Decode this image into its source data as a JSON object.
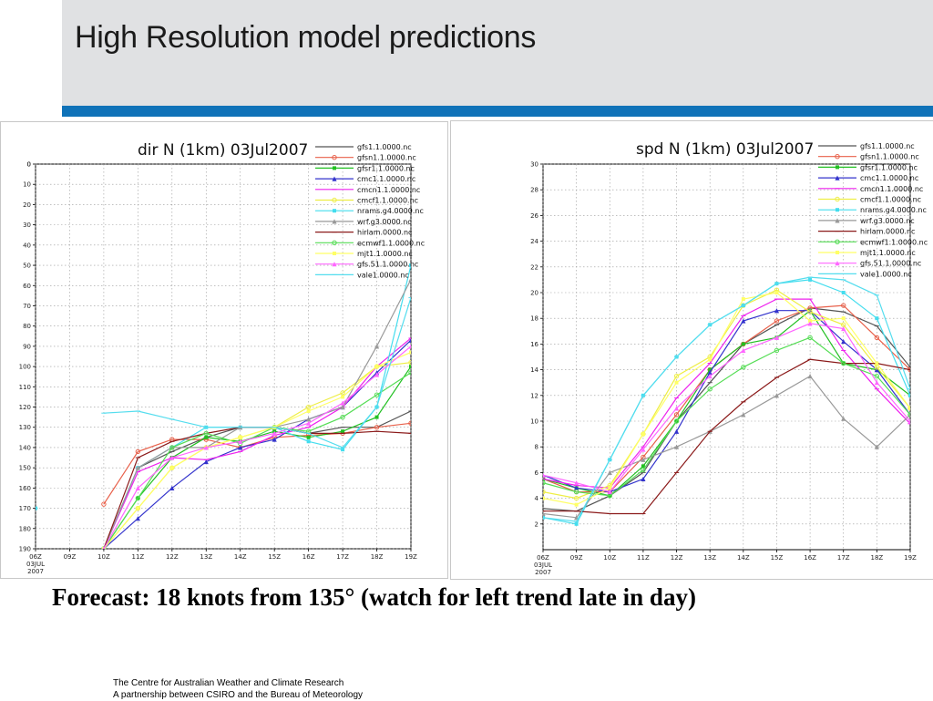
{
  "slide": {
    "title": "High Resolution model predictions",
    "caption": "Forecast: 18 knots from 135° (watch for left trend late in day)",
    "footer_line1": "The Centre for Australian Weather and Climate Research",
    "footer_line2": "A partnership between CSIRO and the Bureau of Meteorology",
    "header_color": "#e0e1e3",
    "accent_color": "#0f72b8"
  },
  "chart_data": [
    {
      "type": "line",
      "title": "dir N (1km) 03Jul2007",
      "x": [
        "06Z\n03JUL\n2007",
        "09Z",
        "10Z",
        "11Z",
        "12Z",
        "13Z",
        "14Z",
        "15Z",
        "16Z",
        "17Z",
        "18Z",
        "19Z"
      ],
      "x_tick_labels": [
        "06Z",
        "09Z",
        "10Z",
        "11Z",
        "12Z",
        "13Z",
        "14Z",
        "15Z",
        "16Z",
        "17Z",
        "18Z",
        "19Z"
      ],
      "y_reversed": true,
      "ylim": [
        0,
        190
      ],
      "yticks": [
        0,
        10,
        20,
        30,
        40,
        50,
        60,
        70,
        80,
        90,
        100,
        110,
        120,
        130,
        140,
        150,
        160,
        170,
        180,
        190
      ],
      "grid": true,
      "legend_position": "top-right",
      "series": [
        {
          "name": "gfs1.1.0000.nc",
          "color": "#555555",
          "values": [
            null,
            null,
            190,
            150,
            142,
            135,
            130,
            130,
            133,
            130,
            130,
            122
          ]
        },
        {
          "name": "gfsn1.1.0000.nc",
          "color": "#e8604a",
          "values": [
            null,
            null,
            168,
            142,
            136,
            136,
            140,
            135,
            134,
            133,
            130,
            128
          ]
        },
        {
          "name": "gfsr1.1.0000.nc",
          "color": "#22c022",
          "values": [
            null,
            null,
            190,
            165,
            145,
            135,
            137,
            132,
            135,
            132,
            125,
            100
          ]
        },
        {
          "name": "cmc1.1.0000.nc",
          "color": "#3333cc",
          "values": [
            null,
            null,
            190,
            175,
            160,
            147,
            140,
            136,
            126,
            120,
            103,
            87
          ]
        },
        {
          "name": "cmcn1.1.0000.nc",
          "color": "#ee22ee",
          "values": [
            null,
            null,
            190,
            152,
            145,
            146,
            142,
            134,
            130,
            120,
            100,
            86
          ]
        },
        {
          "name": "cmcf1.1.0000.nc",
          "color": "#eeee44",
          "values": [
            null,
            null,
            190,
            170,
            150,
            140,
            135,
            130,
            120,
            113,
            100,
            98
          ]
        },
        {
          "name": "nrams.g4.0000.nc",
          "color": "#44ddee",
          "values": [
            170,
            null,
            190,
            150,
            140,
            130,
            130,
            130,
            137,
            141,
            120,
            50
          ]
        },
        {
          "name": "wrf.g3.0000.nc",
          "color": "#999999",
          "values": [
            null,
            null,
            190,
            150,
            140,
            140,
            130,
            130,
            126,
            120,
            90,
            57
          ]
        },
        {
          "name": "hirlam.0000.nc",
          "color": "#8b1a1a",
          "values": [
            null,
            null,
            190,
            145,
            137,
            133,
            130,
            130,
            133,
            133,
            132,
            133
          ]
        },
        {
          "name": "ecmwf1.1.0000.nc",
          "color": "#55dd55",
          "values": [
            null,
            null,
            190,
            165,
            140,
            133,
            138,
            130,
            132,
            125,
            114,
            103
          ]
        },
        {
          "name": "mjt1.1.0000.nc",
          "color": "#ffff66",
          "values": [
            null,
            null,
            190,
            170,
            150,
            140,
            135,
            130,
            122,
            115,
            100,
            93
          ]
        },
        {
          "name": "gfs.51.1.0000.nc",
          "color": "#ff66ff",
          "values": [
            null,
            null,
            190,
            160,
            145,
            140,
            137,
            133,
            128,
            118,
            104,
            90
          ]
        },
        {
          "name": "vale1.0000.nc",
          "color": "#55ddee",
          "values": [
            170,
            null,
            123,
            122,
            126,
            130,
            130,
            130,
            133,
            140,
            120,
            66
          ]
        }
      ]
    },
    {
      "type": "line",
      "title": "spd N (1km) 03Jul2007",
      "x": [
        "06Z\n03JUL\n2007",
        "09Z",
        "10Z",
        "11Z",
        "12Z",
        "13Z",
        "14Z",
        "15Z",
        "16Z",
        "17Z",
        "18Z",
        "19Z"
      ],
      "x_tick_labels": [
        "06Z",
        "09Z",
        "10Z",
        "11Z",
        "12Z",
        "13Z",
        "14Z",
        "15Z",
        "16Z",
        "17Z",
        "18Z",
        "19Z"
      ],
      "ylim": [
        0,
        30
      ],
      "yticks": [
        2,
        4,
        6,
        8,
        10,
        12,
        14,
        16,
        18,
        20,
        22,
        24,
        26,
        28,
        30
      ],
      "grid": true,
      "legend_position": "top-right",
      "series": [
        {
          "name": "gfs1.1.0000.nc",
          "color": "#555555",
          "values": [
            3.2,
            3.0,
            4.2,
            6.0,
            10.0,
            13.0,
            16.0,
            17.5,
            18.8,
            18.5,
            17.4,
            14.2
          ]
        },
        {
          "name": "gfsn1.1.0000.nc",
          "color": "#e8604a",
          "values": [
            5.5,
            4.5,
            4.5,
            7.2,
            10.5,
            14.0,
            16.0,
            17.8,
            18.8,
            19.0,
            16.5,
            14.0
          ]
        },
        {
          "name": "gfsr1.1.0000.nc",
          "color": "#22c022",
          "values": [
            5.5,
            4.8,
            4.2,
            6.5,
            10.0,
            14.0,
            16.0,
            16.5,
            18.6,
            14.5,
            14.0,
            12.0
          ]
        },
        {
          "name": "cmc1.1.0000.nc",
          "color": "#3333cc",
          "values": [
            5.8,
            4.8,
            4.5,
            5.5,
            9.2,
            13.8,
            17.8,
            18.6,
            18.6,
            16.2,
            14.0,
            10.5
          ]
        },
        {
          "name": "cmcn1.1.0000.nc",
          "color": "#ee22ee",
          "values": [
            5.5,
            5.0,
            4.8,
            8.0,
            11.8,
            14.5,
            18.2,
            19.5,
            19.5,
            15.5,
            12.5,
            9.8
          ]
        },
        {
          "name": "cmcf1.1.0000.nc",
          "color": "#eeee44",
          "values": [
            4.5,
            4.0,
            5.0,
            9.0,
            13.5,
            15.0,
            19.0,
            20.2,
            18.5,
            17.5,
            14.2,
            11.0
          ]
        },
        {
          "name": "nrams.g4.0000.nc",
          "color": "#44ddee",
          "values": [
            2.5,
            2.0,
            7.0,
            12.0,
            15.0,
            17.5,
            19.0,
            20.7,
            21.0,
            20.0,
            18.0,
            12.0
          ]
        },
        {
          "name": "wrf.g3.0000.nc",
          "color": "#999999",
          "values": [
            2.8,
            2.5,
            6.0,
            7.0,
            8.0,
            9.2,
            10.5,
            12.0,
            13.5,
            10.2,
            8.0,
            10.5
          ]
        },
        {
          "name": "hirlam.0000.nc",
          "color": "#8b1a1a",
          "values": [
            3.0,
            3.0,
            2.8,
            2.8,
            6.0,
            9.2,
            11.5,
            13.4,
            14.8,
            14.5,
            14.5,
            14.0
          ]
        },
        {
          "name": "ecmwf1.1.0000.nc",
          "color": "#55dd55",
          "values": [
            5.2,
            4.5,
            4.2,
            6.2,
            10.0,
            12.5,
            14.2,
            15.5,
            16.5,
            14.5,
            13.5,
            10.5
          ]
        },
        {
          "name": "mjt1.1.0000.nc",
          "color": "#ffff66",
          "values": [
            4.0,
            3.5,
            4.8,
            9.0,
            13.0,
            14.8,
            19.5,
            20.0,
            17.8,
            18.0,
            14.5,
            11.0
          ]
        },
        {
          "name": "gfs.51.1.0000.nc",
          "color": "#ff66ff",
          "values": [
            5.8,
            5.2,
            4.5,
            7.8,
            11.0,
            13.5,
            15.5,
            16.5,
            17.6,
            17.2,
            13.0,
            10.0
          ]
        },
        {
          "name": "vale1.0000.nc",
          "color": "#55ddee",
          "values": [
            2.5,
            2.2,
            7.0,
            12.0,
            15.0,
            17.5,
            19.0,
            20.7,
            21.2,
            21.0,
            19.8,
            12.5
          ]
        }
      ]
    }
  ]
}
